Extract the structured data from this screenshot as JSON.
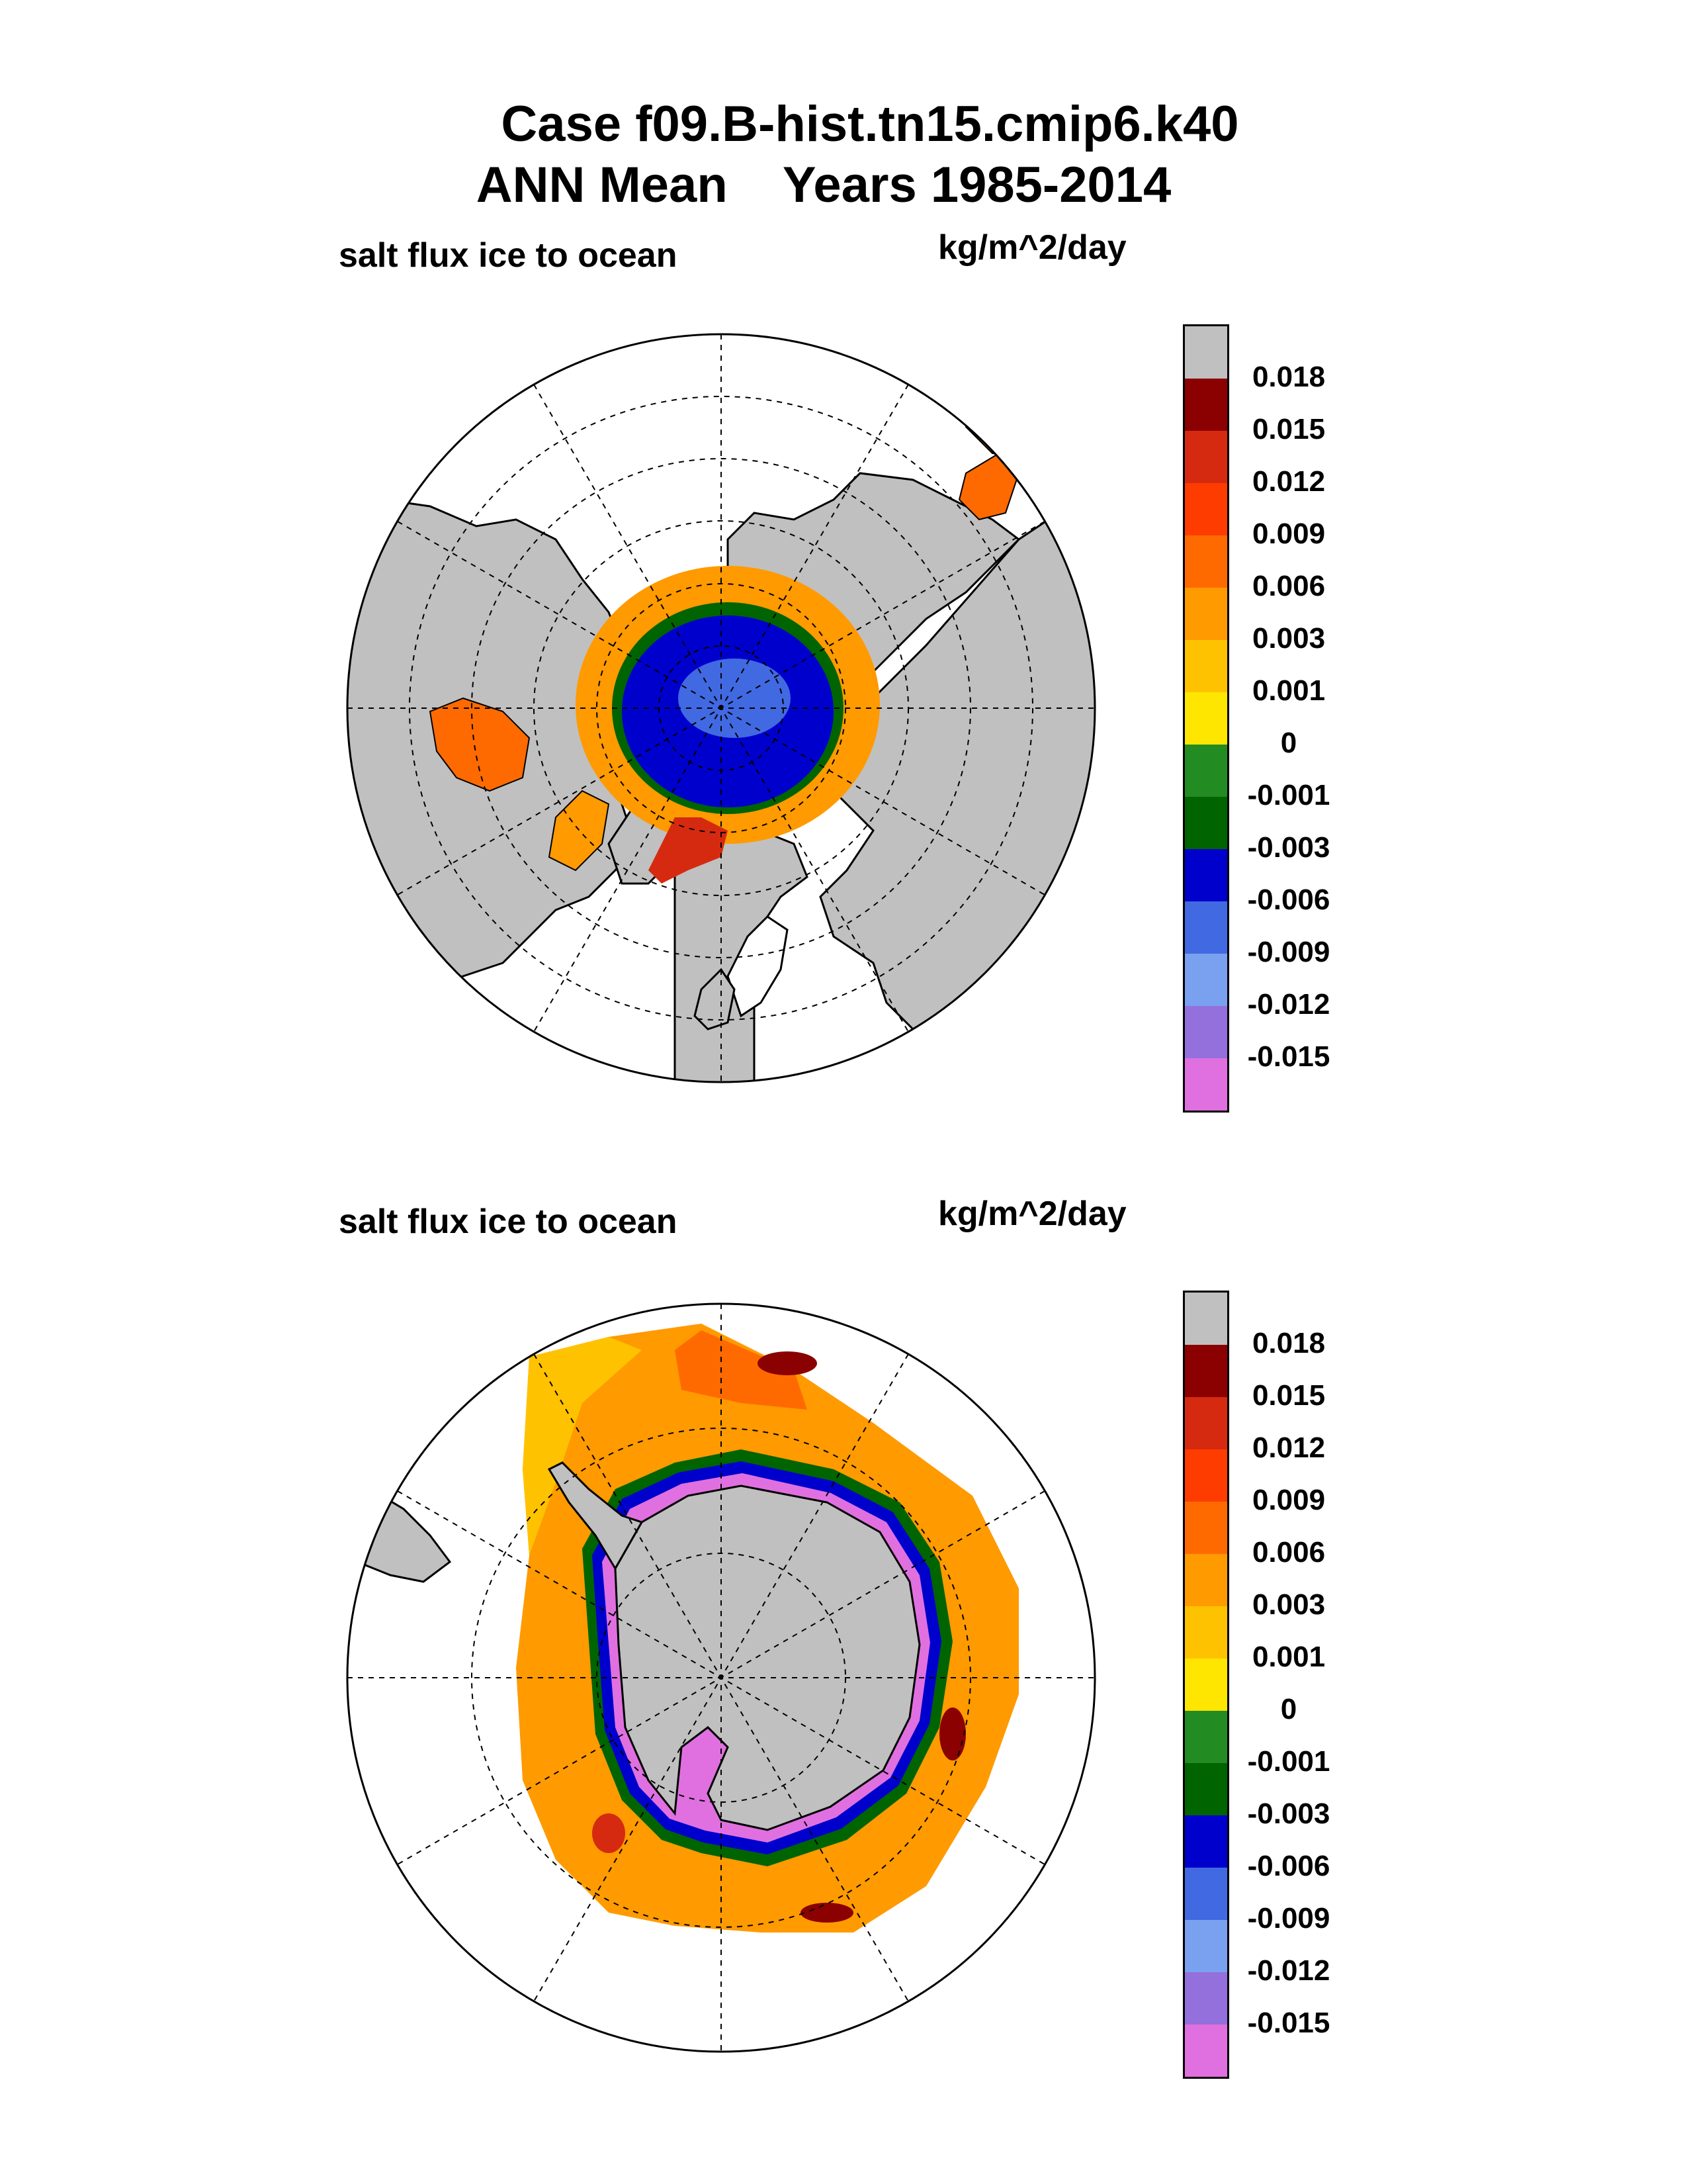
{
  "title": {
    "line1": "Case f09.B-hist.tn15.cmip6.k40",
    "line2": "ANN Mean    Years 1985-2014"
  },
  "chart_data": [
    {
      "type": "heatmap",
      "projection": "polar-stereographic",
      "hemisphere": "north",
      "variable": "salt flux ice to ocean",
      "units": "kg/m^2/day",
      "grid": true,
      "legend_position": "right",
      "colorbar": {
        "levels": [
          "0.018",
          "0.015",
          "0.012",
          "0.009",
          "0.006",
          "0.003",
          "0.001",
          "0",
          "-0.001",
          "-0.003",
          "-0.006",
          "-0.009",
          "-0.012",
          "-0.015"
        ],
        "colors": [
          "#c0c0c0",
          "#8b0000",
          "#d62a10",
          "#ff3c00",
          "#ff6a00",
          "#ff9a00",
          "#ffc200",
          "#ffe600",
          "#228b22",
          "#006400",
          "#0000cd",
          "#4169e1",
          "#7aa0f0",
          "#9370db",
          "#e070e0"
        ]
      }
    },
    {
      "type": "heatmap",
      "projection": "polar-stereographic",
      "hemisphere": "south",
      "variable": "salt flux ice to ocean",
      "units": "kg/m^2/day",
      "grid": true,
      "legend_position": "right",
      "colorbar": {
        "levels": [
          "0.018",
          "0.015",
          "0.012",
          "0.009",
          "0.006",
          "0.003",
          "0.001",
          "0",
          "-0.001",
          "-0.003",
          "-0.006",
          "-0.009",
          "-0.012",
          "-0.015"
        ],
        "colors": [
          "#c0c0c0",
          "#8b0000",
          "#d62a10",
          "#ff3c00",
          "#ff6a00",
          "#ff9a00",
          "#ffc200",
          "#ffe600",
          "#228b22",
          "#006400",
          "#0000cd",
          "#4169e1",
          "#7aa0f0",
          "#9370db",
          "#e070e0"
        ]
      }
    }
  ]
}
